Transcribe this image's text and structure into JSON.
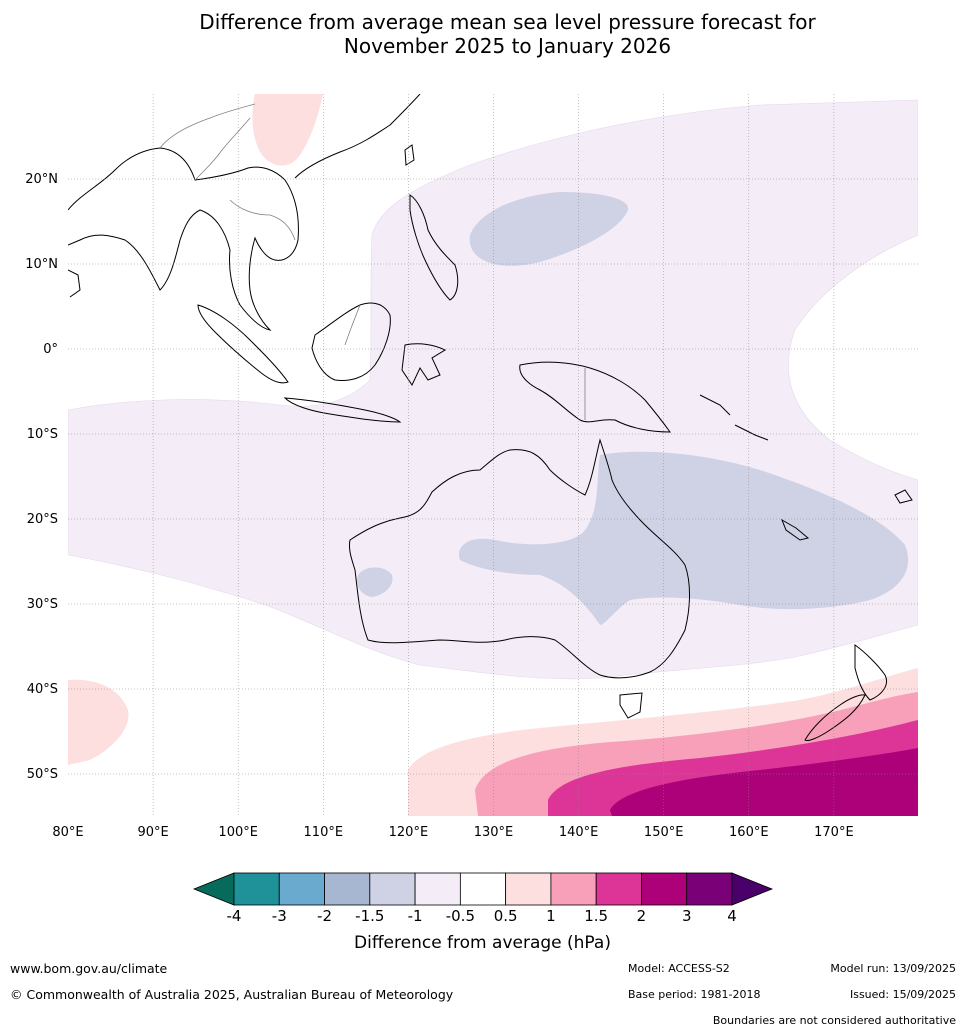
{
  "title_line1": "Difference from average mean sea level pressure forecast for",
  "title_line2": "November 2025 to January 2026",
  "lat_labels": [
    "20°N",
    "10°N",
    "0°",
    "10°S",
    "20°S",
    "30°S",
    "40°S",
    "50°S"
  ],
  "lon_labels": [
    "80°E",
    "90°E",
    "100°E",
    "110°E",
    "120°E",
    "130°E",
    "140°E",
    "150°E",
    "160°E",
    "170°E"
  ],
  "colorbar": {
    "title": "Difference from average (hPa)",
    "ticks": [
      "-4",
      "-3",
      "-2",
      "-1.5",
      "-1",
      "-0.5",
      "0.5",
      "1",
      "1.5",
      "2",
      "3",
      "4"
    ],
    "colors": [
      "#066b5b",
      "#1f9199",
      "#6aaacf",
      "#a7b7d2",
      "#cfd1e5",
      "#f4ecf6",
      "#ffffff",
      "#fddfe0",
      "#f89fba",
      "#dd3597",
      "#ad0179",
      "#790077",
      "#4a006a"
    ]
  },
  "footer": {
    "website": "www.bom.gov.au/climate",
    "copyright": "© Commonwealth of Australia 2025, Australian Bureau of Meteorology",
    "model": "Model: ACCESS-S2",
    "base_period": "Base period: 1981-2018",
    "model_run": "Model run: 13/09/2025",
    "issued": "Issued: 15/09/2025",
    "disclaimer": "Boundaries are not considered authoritative"
  }
}
